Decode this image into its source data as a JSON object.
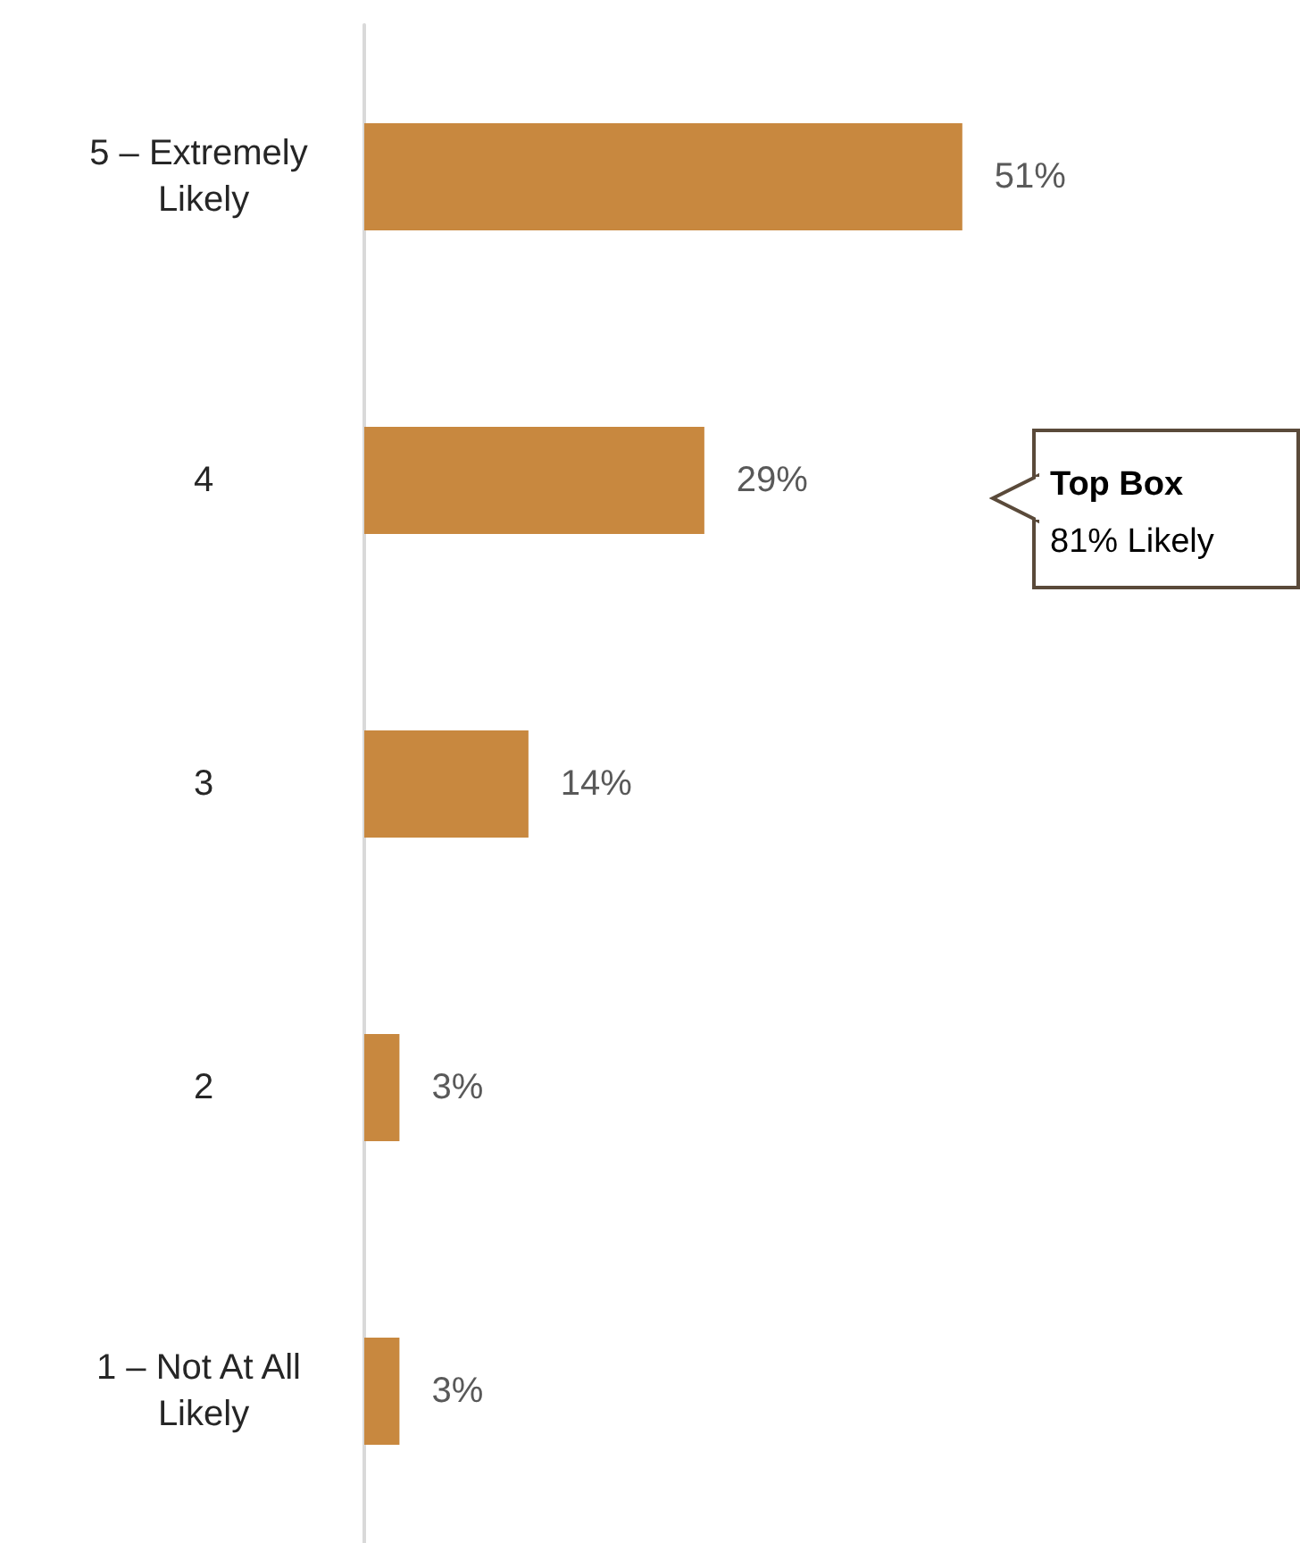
{
  "chart_data": {
    "type": "bar",
    "orientation": "horizontal",
    "categories": [
      "5 – Extremely Likely",
      "4",
      "3",
      "2",
      "1 – Not At All Likely"
    ],
    "values": [
      51,
      29,
      14,
      3,
      3
    ],
    "value_labels": [
      "51%",
      "29%",
      "14%",
      "3%",
      "3%"
    ],
    "color": "#c8883f",
    "tick_labels": "y",
    "annotations": [
      "Top Box",
      "81% Likely"
    ]
  }
}
